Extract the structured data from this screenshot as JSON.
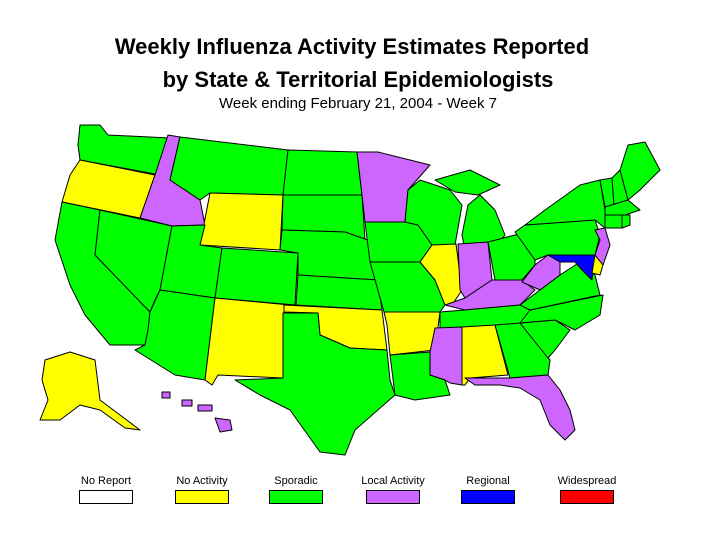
{
  "title_line1": "Weekly Influenza Activity Estimates Reported",
  "title_line2": "by State & Territorial Epidemiologists",
  "subtitle": "Week ending February 21, 2004 - Week 7",
  "colors": {
    "no_report": "#ffffff",
    "no_activity": "#ffff00",
    "sporadic": "#00ff00",
    "local": "#cc66ff",
    "regional": "#0000ff",
    "widespread": "#ff0000"
  },
  "legend": [
    {
      "label": "No Report",
      "level": "no_report"
    },
    {
      "label": "No Activity",
      "level": "no_activity"
    },
    {
      "label": "Sporadic",
      "level": "sporadic"
    },
    {
      "label": "Local Activity",
      "level": "local"
    },
    {
      "label": "Regional",
      "level": "regional"
    },
    {
      "label": "Widespread",
      "level": "widespread"
    }
  ],
  "states": {
    "WA": "sporadic",
    "OR": "no_activity",
    "CA": "sporadic",
    "NV": "sporadic",
    "ID": "local",
    "MT": "sporadic",
    "WY": "no_activity",
    "UT": "sporadic",
    "AZ": "sporadic",
    "CO": "sporadic",
    "NM": "no_activity",
    "ND": "sporadic",
    "SD": "sporadic",
    "NE": "sporadic",
    "KS": "sporadic",
    "OK": "no_activity",
    "TX": "sporadic",
    "MN": "local",
    "IA": "sporadic",
    "MO": "sporadic",
    "AR": "no_activity",
    "LA": "sporadic",
    "WI": "sporadic",
    "IL": "no_activity",
    "MI": "sporadic",
    "IN": "local",
    "OH": "sporadic",
    "KY": "local",
    "TN": "sporadic",
    "MS": "local",
    "AL": "no_activity",
    "GA": "sporadic",
    "FL": "local",
    "SC": "sporadic",
    "NC": "sporadic",
    "VA": "sporadic",
    "WV": "local",
    "PA": "sporadic",
    "NY": "sporadic",
    "NJ": "local",
    "DE": "no_activity",
    "MD": "regional",
    "VT": "sporadic",
    "NH": "sporadic",
    "ME": "sporadic",
    "MA": "sporadic",
    "CT": "sporadic",
    "RI": "sporadic",
    "AK": "no_activity",
    "HI": "local"
  }
}
